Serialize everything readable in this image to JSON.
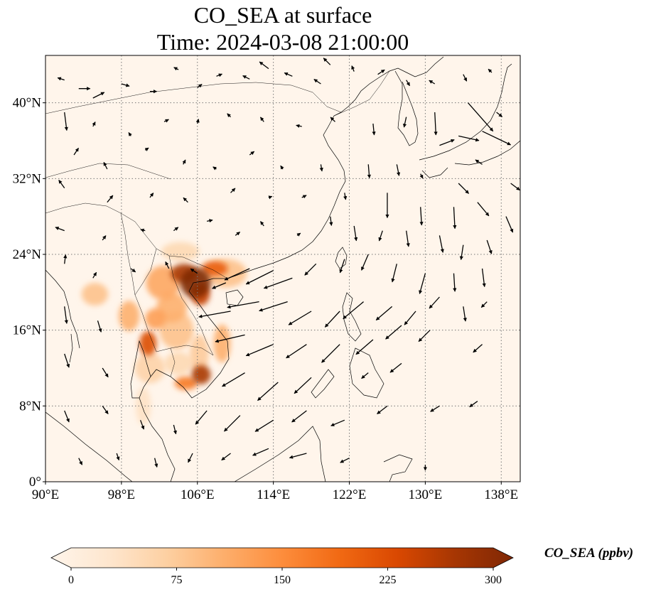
{
  "title": {
    "line1": "CO_SEA at surface",
    "line2": "Time: 2024-03-08 21:00:00"
  },
  "map": {
    "projection": "PlateCarree",
    "lon_range": [
      90,
      140
    ],
    "lat_range": [
      0,
      45
    ],
    "gridlines": "dotted",
    "lon_ticks": [
      {
        "value": 90,
        "label": "90°E"
      },
      {
        "value": 98,
        "label": "98°E"
      },
      {
        "value": 106,
        "label": "106°E"
      },
      {
        "value": 114,
        "label": "114°E"
      },
      {
        "value": 122,
        "label": "122°E"
      },
      {
        "value": 130,
        "label": "130°E"
      },
      {
        "value": 138,
        "label": "138°E"
      }
    ],
    "lat_ticks": [
      {
        "value": 0,
        "label": "0°"
      },
      {
        "value": 8,
        "label": "8°N"
      },
      {
        "value": 16,
        "label": "16°N"
      },
      {
        "value": 24,
        "label": "24°N"
      },
      {
        "value": 32,
        "label": "32°N"
      },
      {
        "value": 40,
        "label": "40°N"
      }
    ],
    "background_color": "#fff5eb",
    "hotspots": [
      {
        "lon": 105.8,
        "lat": 21.0,
        "rlon": 1.6,
        "rlat": 1.6,
        "value": 300
      },
      {
        "lon": 104.6,
        "lat": 22.0,
        "rlon": 1.4,
        "rlat": 1.0,
        "value": 260
      },
      {
        "lon": 106.3,
        "lat": 19.8,
        "rlon": 1.0,
        "rlat": 1.2,
        "value": 240
      },
      {
        "lon": 107.8,
        "lat": 22.5,
        "rlon": 1.4,
        "rlat": 0.8,
        "value": 200
      },
      {
        "lon": 106.4,
        "lat": 11.3,
        "rlon": 1.0,
        "rlat": 1.0,
        "value": 260
      },
      {
        "lon": 104.8,
        "lat": 10.4,
        "rlon": 1.2,
        "rlat": 0.7,
        "value": 170
      },
      {
        "lon": 100.8,
        "lat": 14.6,
        "rlon": 0.9,
        "rlat": 1.3,
        "value": 220
      },
      {
        "lon": 102.4,
        "lat": 21.0,
        "rlon": 1.8,
        "rlat": 1.8,
        "value": 120
      },
      {
        "lon": 103.3,
        "lat": 18.4,
        "rlon": 1.6,
        "rlat": 1.6,
        "value": 110
      },
      {
        "lon": 101.6,
        "lat": 17.2,
        "rlon": 1.1,
        "rlat": 1.1,
        "value": 130
      },
      {
        "lon": 103.8,
        "lat": 16.0,
        "rlon": 1.8,
        "rlat": 2.0,
        "value": 90
      },
      {
        "lon": 98.8,
        "lat": 17.5,
        "rlon": 1.1,
        "rlat": 1.6,
        "value": 110
      },
      {
        "lon": 95.2,
        "lat": 19.8,
        "rlon": 1.4,
        "rlat": 1.2,
        "value": 90
      },
      {
        "lon": 106.2,
        "lat": 13.5,
        "rlon": 1.0,
        "rlat": 2.0,
        "value": 80
      },
      {
        "lon": 101.0,
        "lat": 12.0,
        "rlon": 1.6,
        "rlat": 1.6,
        "value": 70
      },
      {
        "lon": 109.0,
        "lat": 22.0,
        "rlon": 2.2,
        "rlat": 1.5,
        "value": 90
      },
      {
        "lon": 104.2,
        "lat": 24.3,
        "rlon": 2.0,
        "rlat": 1.0,
        "value": 60
      },
      {
        "lon": 100.3,
        "lat": 8.0,
        "rlon": 0.8,
        "rlat": 2.0,
        "value": 45
      },
      {
        "lon": 108.6,
        "lat": 14.6,
        "rlon": 0.9,
        "rlat": 2.0,
        "value": 110
      },
      {
        "lon": 104.0,
        "lat": 12.5,
        "rlon": 1.5,
        "rlat": 1.2,
        "value": 60
      }
    ],
    "wind_vectors": [
      {
        "lon": 92,
        "lat": 42.4,
        "u": -0.6,
        "v": 0.2
      },
      {
        "lon": 93.5,
        "lat": 41.5,
        "u": 1.0,
        "v": 0
      },
      {
        "lon": 95.0,
        "lat": 40.5,
        "u": 1.0,
        "v": 0.5
      },
      {
        "lon": 98.0,
        "lat": 42.0,
        "u": 0.7,
        "v": -0.2
      },
      {
        "lon": 101.0,
        "lat": 41.2,
        "u": 0.6,
        "v": 0
      },
      {
        "lon": 104.0,
        "lat": 43.5,
        "u": -0.4,
        "v": 0.2
      },
      {
        "lon": 106.0,
        "lat": 41.6,
        "u": 0.4,
        "v": 0.3
      },
      {
        "lon": 108.0,
        "lat": 42.8,
        "u": 0.5,
        "v": 0.2
      },
      {
        "lon": 111.5,
        "lat": 42.5,
        "u": -0.6,
        "v": 0.3
      },
      {
        "lon": 113.5,
        "lat": 43.6,
        "u": -0.8,
        "v": 0.6
      },
      {
        "lon": 116.0,
        "lat": 42.8,
        "u": -0.7,
        "v": 0.3
      },
      {
        "lon": 119.0,
        "lat": 42.0,
        "u": -0.6,
        "v": 0.4
      },
      {
        "lon": 120.0,
        "lat": 44.0,
        "u": -0.6,
        "v": 0.6
      },
      {
        "lon": 122.5,
        "lat": 43.3,
        "u": -0.2,
        "v": 0.5
      },
      {
        "lon": 125.0,
        "lat": 43.0,
        "u": 0.6,
        "v": 0.4
      },
      {
        "lon": 128.0,
        "lat": 42.4,
        "u": 0.3,
        "v": -0.5
      },
      {
        "lon": 131.0,
        "lat": 42.0,
        "u": -0.5,
        "v": 0.3
      },
      {
        "lon": 134.0,
        "lat": 43.0,
        "u": 0.3,
        "v": -0.6
      },
      {
        "lon": 137.0,
        "lat": 43.2,
        "u": -0.3,
        "v": 0.3
      },
      {
        "lon": 92.0,
        "lat": 39.0,
        "u": 0.2,
        "v": -1.6
      },
      {
        "lon": 95.0,
        "lat": 37.5,
        "u": 0.2,
        "v": 0.4
      },
      {
        "lon": 99.0,
        "lat": 36.5,
        "u": -0.2,
        "v": 0.3
      },
      {
        "lon": 102.5,
        "lat": 38.0,
        "u": 0.4,
        "v": 0.2
      },
      {
        "lon": 106.0,
        "lat": 37.8,
        "u": 0.1,
        "v": 0.4
      },
      {
        "lon": 109.5,
        "lat": 38.5,
        "u": -0.3,
        "v": 0.3
      },
      {
        "lon": 113.0,
        "lat": 38.0,
        "u": -0.3,
        "v": 0.4
      },
      {
        "lon": 117.0,
        "lat": 37.5,
        "u": -0.5,
        "v": 0.1
      },
      {
        "lon": 120.5,
        "lat": 38.0,
        "u": -0.4,
        "v": 0.4
      },
      {
        "lon": 124.5,
        "lat": 37.8,
        "u": 0.1,
        "v": -1.0
      },
      {
        "lon": 128.0,
        "lat": 38.5,
        "u": -0.2,
        "v": -0.9
      },
      {
        "lon": 131.0,
        "lat": 39.0,
        "u": 0.1,
        "v": -2.0
      },
      {
        "lon": 134.5,
        "lat": 40.0,
        "u": 2.2,
        "v": -2.5
      },
      {
        "lon": 137.5,
        "lat": 39.0,
        "u": 0.5,
        "v": -0.4
      },
      {
        "lon": 136.0,
        "lat": 37.0,
        "u": 2.5,
        "v": -1.2
      },
      {
        "lon": 133.5,
        "lat": 36.5,
        "u": 1.8,
        "v": -0.4
      },
      {
        "lon": 131.5,
        "lat": 35.5,
        "u": 1.3,
        "v": 0.5
      },
      {
        "lon": 93.0,
        "lat": 34.5,
        "u": 0.4,
        "v": 0.6
      },
      {
        "lon": 96.5,
        "lat": 33.0,
        "u": -0.3,
        "v": 0.6
      },
      {
        "lon": 100.5,
        "lat": 35.0,
        "u": 0.3,
        "v": 0.2
      },
      {
        "lon": 104.5,
        "lat": 33.5,
        "u": 0.2,
        "v": 0.4
      },
      {
        "lon": 108.0,
        "lat": 33.0,
        "u": -0.3,
        "v": 0.2
      },
      {
        "lon": 111.5,
        "lat": 34.5,
        "u": 0.4,
        "v": 0.3
      },
      {
        "lon": 115.0,
        "lat": 33.0,
        "u": -0.2,
        "v": 0.3
      },
      {
        "lon": 119.0,
        "lat": 33.5,
        "u": 0.1,
        "v": -0.6
      },
      {
        "lon": 124.0,
        "lat": 33.5,
        "u": 0.1,
        "v": -1.2
      },
      {
        "lon": 127.0,
        "lat": 33.5,
        "u": 0.2,
        "v": -1.0
      },
      {
        "lon": 129.5,
        "lat": 32.5,
        "u": 0.2,
        "v": -0.4
      },
      {
        "lon": 133.5,
        "lat": 31.5,
        "u": 0.9,
        "v": -0.9
      },
      {
        "lon": 136.0,
        "lat": 33.5,
        "u": -0.6,
        "v": 0.4
      },
      {
        "lon": 139.0,
        "lat": 31.5,
        "u": 0.8,
        "v": -0.6
      },
      {
        "lon": 92.0,
        "lat": 31.0,
        "u": -0.5,
        "v": 0.7
      },
      {
        "lon": 96.5,
        "lat": 29.5,
        "u": 0.5,
        "v": 0.6
      },
      {
        "lon": 101.0,
        "lat": 30.0,
        "u": 0.3,
        "v": 0.4
      },
      {
        "lon": 105.0,
        "lat": 29.5,
        "u": -0.4,
        "v": 0.4
      },
      {
        "lon": 109.5,
        "lat": 30.5,
        "u": 0.4,
        "v": 0.4
      },
      {
        "lon": 113.5,
        "lat": 30.0,
        "u": 0.3,
        "v": 0.1
      },
      {
        "lon": 117.0,
        "lat": 30.0,
        "u": 0.4,
        "v": 0.2
      },
      {
        "lon": 121.5,
        "lat": 30.5,
        "u": 0.1,
        "v": -0.6
      },
      {
        "lon": 126.0,
        "lat": 30.5,
        "u": 0.0,
        "v": -2.2
      },
      {
        "lon": 129.5,
        "lat": 29.0,
        "u": 0.1,
        "v": -1.6
      },
      {
        "lon": 133.0,
        "lat": 29.0,
        "u": 0.1,
        "v": -1.9
      },
      {
        "lon": 135.5,
        "lat": 29.5,
        "u": 1.0,
        "v": -1.2
      },
      {
        "lon": 138.5,
        "lat": 28.0,
        "u": 0.6,
        "v": -1.4
      },
      {
        "lon": 92.0,
        "lat": 26.5,
        "u": -0.8,
        "v": 0.3
      },
      {
        "lon": 96.0,
        "lat": 25.5,
        "u": 0.3,
        "v": 0.4
      },
      {
        "lon": 100.5,
        "lat": 26.5,
        "u": -0.4,
        "v": 0.1
      },
      {
        "lon": 103.5,
        "lat": 26.5,
        "u": 0.4,
        "v": 0.3
      },
      {
        "lon": 107.0,
        "lat": 27.5,
        "u": 0.5,
        "v": 0.1
      },
      {
        "lon": 110.0,
        "lat": 26.0,
        "u": 0.4,
        "v": 0.3
      },
      {
        "lon": 113.0,
        "lat": 27.0,
        "u": -0.3,
        "v": 0.4
      },
      {
        "lon": 116.5,
        "lat": 26.0,
        "u": 0.3,
        "v": 0.2
      },
      {
        "lon": 120.0,
        "lat": 28.0,
        "u": 0.1,
        "v": -0.8
      },
      {
        "lon": 122.5,
        "lat": 27.0,
        "u": 0.2,
        "v": -1.3
      },
      {
        "lon": 125.5,
        "lat": 26.5,
        "u": -0.3,
        "v": -0.9
      },
      {
        "lon": 128.0,
        "lat": 26.5,
        "u": 0.2,
        "v": -1.4
      },
      {
        "lon": 131.5,
        "lat": 26.0,
        "u": 0.3,
        "v": -1.5
      },
      {
        "lon": 134.0,
        "lat": 25.0,
        "u": -0.2,
        "v": -1.3
      },
      {
        "lon": 136.5,
        "lat": 25.5,
        "u": 0.4,
        "v": -1.2
      },
      {
        "lon": 92.0,
        "lat": 23.0,
        "u": 0.1,
        "v": 0.8
      },
      {
        "lon": 95.0,
        "lat": 21.5,
        "u": 0.3,
        "v": 0.5
      },
      {
        "lon": 99.0,
        "lat": 22.5,
        "u": 0.4,
        "v": -0.3
      },
      {
        "lon": 103.0,
        "lat": 22.5,
        "u": -0.3,
        "v": 0.6
      },
      {
        "lon": 106.0,
        "lat": 22.0,
        "u": -0.6,
        "v": 0.4
      },
      {
        "lon": 109.0,
        "lat": 21.0,
        "u": -1.2,
        "v": -0.5
      },
      {
        "lon": 111.5,
        "lat": 22.5,
        "u": -2.2,
        "v": -1.0
      },
      {
        "lon": 114.0,
        "lat": 22.3,
        "u": -2.4,
        "v": -1.2
      },
      {
        "lon": 116.0,
        "lat": 21.5,
        "u": -2.5,
        "v": -0.9
      },
      {
        "lon": 118.5,
        "lat": 23.0,
        "u": -1.0,
        "v": -1.0
      },
      {
        "lon": 121.5,
        "lat": 23.5,
        "u": -0.4,
        "v": -1.2
      },
      {
        "lon": 124.0,
        "lat": 24.0,
        "u": -0.6,
        "v": -1.4
      },
      {
        "lon": 127.0,
        "lat": 23.0,
        "u": -0.4,
        "v": -1.6
      },
      {
        "lon": 130.0,
        "lat": 22.0,
        "u": -0.5,
        "v": -1.8
      },
      {
        "lon": 133.0,
        "lat": 22.0,
        "u": 0.1,
        "v": -1.6
      },
      {
        "lon": 136.0,
        "lat": 22.5,
        "u": 0.2,
        "v": -1.6
      },
      {
        "lon": 109.5,
        "lat": 18.0,
        "u": -2.8,
        "v": -0.5
      },
      {
        "lon": 112.5,
        "lat": 19.0,
        "u": -2.8,
        "v": -0.5
      },
      {
        "lon": 115.5,
        "lat": 19.0,
        "u": -2.5,
        "v": -0.8
      },
      {
        "lon": 118.0,
        "lat": 18.0,
        "u": -2.0,
        "v": -1.2
      },
      {
        "lon": 121.0,
        "lat": 18.0,
        "u": -1.3,
        "v": -1.4
      },
      {
        "lon": 123.5,
        "lat": 19.0,
        "u": -1.8,
        "v": -1.5
      },
      {
        "lon": 126.5,
        "lat": 18.5,
        "u": -1.4,
        "v": -1.2
      },
      {
        "lon": 129.0,
        "lat": 18.0,
        "u": -1.0,
        "v": -1.2
      },
      {
        "lon": 131.5,
        "lat": 19.5,
        "u": -0.9,
        "v": -1.0
      },
      {
        "lon": 134.0,
        "lat": 18.5,
        "u": 0.2,
        "v": -1.3
      },
      {
        "lon": 136.5,
        "lat": 19.0,
        "u": -0.5,
        "v": -0.5
      },
      {
        "lon": 92.0,
        "lat": 18.5,
        "u": 0.2,
        "v": -1.5
      },
      {
        "lon": 95.5,
        "lat": 17.0,
        "u": 0.3,
        "v": -1.0
      },
      {
        "lon": 111.0,
        "lat": 15.5,
        "u": -2.6,
        "v": -0.6
      },
      {
        "lon": 114.0,
        "lat": 14.5,
        "u": -2.4,
        "v": -1.0
      },
      {
        "lon": 117.5,
        "lat": 14.5,
        "u": -1.8,
        "v": -1.2
      },
      {
        "lon": 121.0,
        "lat": 14.5,
        "u": -1.6,
        "v": -1.6
      },
      {
        "lon": 124.5,
        "lat": 15.0,
        "u": -1.5,
        "v": -1.3
      },
      {
        "lon": 127.5,
        "lat": 16.5,
        "u": -1.4,
        "v": -1.2
      },
      {
        "lon": 130.5,
        "lat": 16.0,
        "u": -1.0,
        "v": -1.0
      },
      {
        "lon": 136.0,
        "lat": 14.5,
        "u": -0.8,
        "v": -0.7
      },
      {
        "lon": 92.0,
        "lat": 13.5,
        "u": 0.4,
        "v": -1.2
      },
      {
        "lon": 96.0,
        "lat": 12.0,
        "u": 0.5,
        "v": -0.8
      },
      {
        "lon": 111.0,
        "lat": 11.5,
        "u": -2.0,
        "v": -1.2
      },
      {
        "lon": 114.5,
        "lat": 10.5,
        "u": -1.8,
        "v": -1.6
      },
      {
        "lon": 118.0,
        "lat": 11.0,
        "u": -1.5,
        "v": -1.4
      },
      {
        "lon": 124.0,
        "lat": 11.5,
        "u": -0.6,
        "v": -0.5
      },
      {
        "lon": 127.5,
        "lat": 12.5,
        "u": -1.0,
        "v": -0.8
      },
      {
        "lon": 92.0,
        "lat": 7.5,
        "u": 0.4,
        "v": -1.0
      },
      {
        "lon": 96.0,
        "lat": 8.0,
        "u": 0.5,
        "v": -0.7
      },
      {
        "lon": 100.0,
        "lat": 6.5,
        "u": 0.3,
        "v": -0.8
      },
      {
        "lon": 103.5,
        "lat": 6.0,
        "u": 0.2,
        "v": -0.8
      },
      {
        "lon": 107.0,
        "lat": 7.5,
        "u": -1.0,
        "v": -1.2
      },
      {
        "lon": 110.5,
        "lat": 7.0,
        "u": -1.4,
        "v": -1.4
      },
      {
        "lon": 114.0,
        "lat": 6.5,
        "u": -1.6,
        "v": -1.0
      },
      {
        "lon": 117.5,
        "lat": 7.5,
        "u": -1.3,
        "v": -1.0
      },
      {
        "lon": 121.5,
        "lat": 6.5,
        "u": -1.2,
        "v": -0.5
      },
      {
        "lon": 126.0,
        "lat": 8.0,
        "u": -0.9,
        "v": -0.7
      },
      {
        "lon": 131.5,
        "lat": 8.0,
        "u": -0.8,
        "v": -0.5
      },
      {
        "lon": 135.5,
        "lat": 8.5,
        "u": -0.7,
        "v": -0.5
      },
      {
        "lon": 93.5,
        "lat": 2.5,
        "u": 0.3,
        "v": -0.6
      },
      {
        "lon": 97.5,
        "lat": 3.0,
        "u": 0.2,
        "v": -0.6
      },
      {
        "lon": 101.5,
        "lat": 2.5,
        "u": 0.2,
        "v": -0.8
      },
      {
        "lon": 105.5,
        "lat": 3.0,
        "u": -0.4,
        "v": -0.8
      },
      {
        "lon": 109.5,
        "lat": 3.0,
        "u": -0.8,
        "v": -0.6
      },
      {
        "lon": 113.5,
        "lat": 3.5,
        "u": -1.4,
        "v": -0.6
      },
      {
        "lon": 117.5,
        "lat": 3.0,
        "u": -1.5,
        "v": -0.4
      },
      {
        "lon": 122.0,
        "lat": 2.5,
        "u": -0.8,
        "v": -0.4
      },
      {
        "lon": 130.0,
        "lat": 1.8,
        "u": 0.0,
        "v": -0.5
      }
    ]
  },
  "colorbar": {
    "label": "CO_SEA (ppbv)",
    "min": 0,
    "max": 300,
    "extend": "both",
    "tick_labels": [
      "0",
      "75",
      "150",
      "225",
      "300"
    ],
    "colors": [
      "#fff5eb",
      "#fee6ce",
      "#fdd0a2",
      "#fdae6b",
      "#fd8d3c",
      "#f16913",
      "#d94801",
      "#a63603",
      "#7f2704"
    ]
  }
}
